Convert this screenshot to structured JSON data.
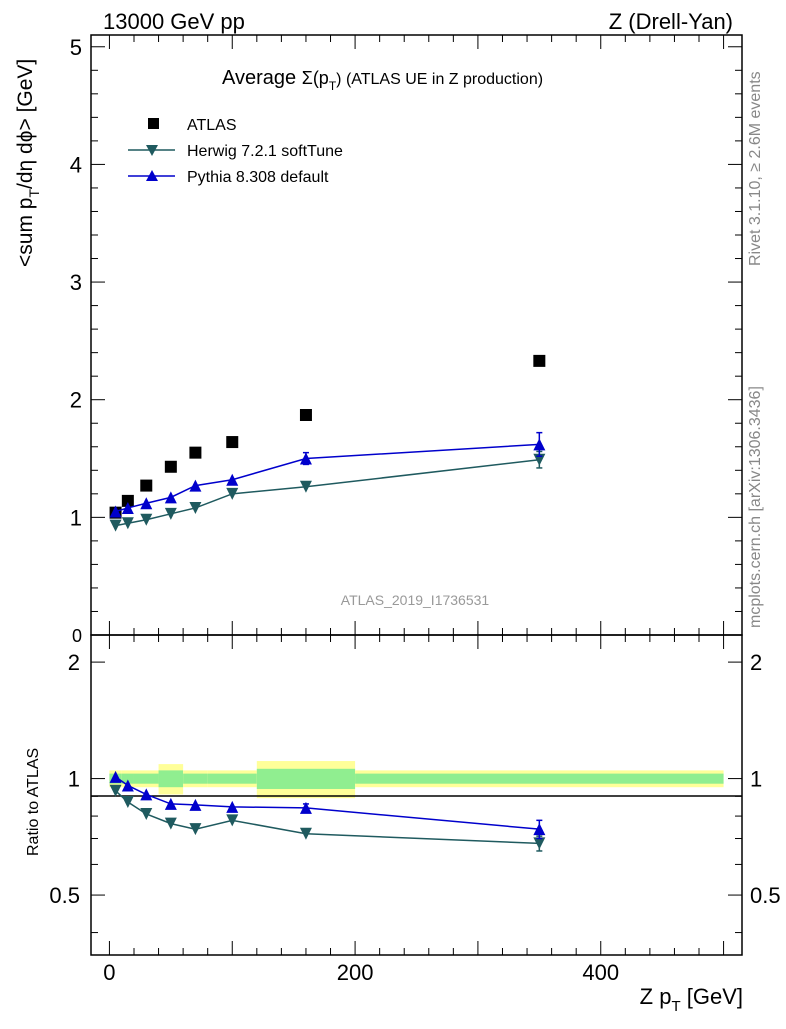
{
  "header": {
    "left": "13000 GeV pp",
    "right": "Z (Drell-Yan)"
  },
  "side_text": {
    "rivet": "Rivet 3.1.10, ≥ 2.6M events",
    "mcplots": "mcplots.cern.ch [arXiv:1306.3436]"
  },
  "watermark": "ATLAS_2019_I1736531",
  "chart_data": [
    {
      "type": "scatter",
      "title_prefix": "Average ",
      "title_sigma": "Σ(p",
      "title_sub": "T",
      "title_suffix": ") (ATLAS UE in Z production)",
      "ylabel_main": "<sum p",
      "ylabel_sub": "T",
      "ylabel_rest": "/dη dϕ> [GeV]",
      "xlim": [
        -15,
        515
      ],
      "ylim": [
        0,
        5.1
      ],
      "yticks": [
        1,
        2,
        3,
        4,
        5
      ],
      "ytick_labels": [
        "1",
        "2",
        "3",
        "4",
        "5"
      ],
      "ytick_zero_label": "0",
      "legend_position": "top-left",
      "series": [
        {
          "name": "ATLAS",
          "marker": "square",
          "color": "#000000",
          "x": [
            5,
            15,
            30,
            50,
            70,
            100,
            160,
            350
          ],
          "y": [
            1.04,
            1.14,
            1.27,
            1.43,
            1.55,
            1.64,
            1.87,
            2.33
          ],
          "err": [
            0,
            0,
            0,
            0,
            0,
            0,
            0,
            0
          ]
        },
        {
          "name": "Herwig 7.2.1 softTune",
          "marker": "triangle-down",
          "color": "#1f5a5f",
          "x": [
            5,
            15,
            30,
            50,
            70,
            100,
            160,
            350
          ],
          "y": [
            0.93,
            0.95,
            0.98,
            1.03,
            1.08,
            1.2,
            1.26,
            1.49
          ],
          "err": [
            0,
            0,
            0,
            0,
            0,
            0,
            0,
            0.07
          ]
        },
        {
          "name": "Pythia 8.308 default",
          "marker": "triangle-up",
          "color": "#0000cc",
          "x": [
            5,
            15,
            30,
            50,
            70,
            100,
            160,
            350
          ],
          "y": [
            1.05,
            1.08,
            1.12,
            1.17,
            1.27,
            1.32,
            1.5,
            1.62
          ],
          "err": [
            0,
            0,
            0,
            0,
            0,
            0,
            0.05,
            0.1
          ]
        }
      ]
    },
    {
      "type": "line",
      "ylabel": "Ratio to ATLAS",
      "xlabel_main": "Z p",
      "xlabel_sub": "T",
      "xlabel_rest": " [GeV]",
      "xlim": [
        -15,
        515
      ],
      "ylim": [
        0.35,
        2.35
      ],
      "xticks": [
        0,
        200,
        400
      ],
      "xtick_labels": [
        "0",
        "200",
        "400"
      ],
      "yticks": [
        0.5,
        1,
        2
      ],
      "ytick_labels": [
        "0.5",
        "1",
        "2"
      ],
      "log_y": true,
      "bands": {
        "colors": {
          "stat": "#90ee90",
          "total": "#ffff99"
        },
        "edges": [
          0,
          10,
          20,
          40,
          60,
          80,
          120,
          200,
          500
        ],
        "stat": [
          0.03,
          0.03,
          0.03,
          0.05,
          0.03,
          0.03,
          0.06,
          0.03
        ],
        "total": [
          0.05,
          0.05,
          0.05,
          0.09,
          0.05,
          0.05,
          0.11,
          0.05
        ]
      },
      "series": [
        {
          "name": "Herwig 7.2.1 softTune",
          "marker": "triangle-down",
          "color": "#1f5a5f",
          "x": [
            5,
            15,
            30,
            50,
            70,
            100,
            160,
            350
          ],
          "y": [
            0.93,
            0.87,
            0.81,
            0.765,
            0.74,
            0.78,
            0.72,
            0.68
          ],
          "err": [
            0,
            0,
            0,
            0,
            0,
            0,
            0,
            0.03
          ]
        },
        {
          "name": "Pythia 8.308 default",
          "marker": "triangle-up",
          "color": "#0000cc",
          "x": [
            5,
            15,
            30,
            50,
            70,
            100,
            160,
            350
          ],
          "y": [
            1.01,
            0.96,
            0.91,
            0.86,
            0.855,
            0.845,
            0.84,
            0.74
          ],
          "err": [
            0,
            0,
            0,
            0,
            0,
            0,
            0.02,
            0.04
          ]
        }
      ]
    }
  ]
}
